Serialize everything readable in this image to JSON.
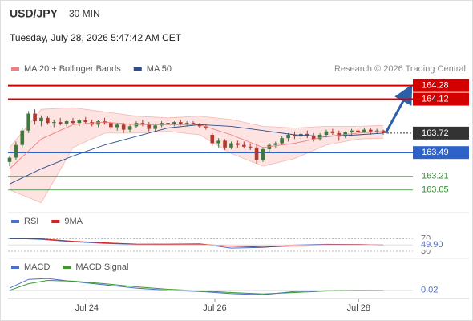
{
  "chart_data": [
    {
      "type": "candlestick",
      "title": "USD/JPY",
      "subtitle": "30 MIN",
      "date": "Tuesday, July 28, 2026 5:47:42 AM CET",
      "source": "Research © 2026 Trading Central",
      "up_color": "#3d7a3d",
      "down_color": "#b03a2e",
      "xlim": [
        -0.25,
        63.04
      ],
      "ylim": [
        162.83,
        164.39
      ],
      "xticks": [
        {
          "value": 12.2,
          "label": "Jul 24"
        },
        {
          "value": 32.4,
          "label": "Jul 26"
        },
        {
          "value": 55.1,
          "label": "Jul 28"
        }
      ],
      "x": [
        0,
        1,
        2,
        3,
        4,
        5,
        6,
        7,
        8,
        9,
        10,
        11,
        12,
        13,
        14,
        15,
        16,
        17,
        18,
        19,
        20,
        21,
        22,
        23,
        24,
        25,
        26,
        27,
        28,
        29,
        30,
        31,
        32,
        33,
        34,
        35,
        36,
        37,
        38,
        39,
        40,
        41,
        42,
        43,
        44,
        45,
        46,
        47,
        48,
        49,
        50,
        51,
        52,
        53,
        54,
        55,
        56,
        57,
        58,
        59
      ],
      "ohlc": [
        [
          163.38,
          163.45,
          163.33,
          163.43
        ],
        [
          163.43,
          163.62,
          163.4,
          163.58
        ],
        [
          163.58,
          163.78,
          163.55,
          163.75
        ],
        [
          163.75,
          163.98,
          163.72,
          163.95
        ],
        [
          163.95,
          164.0,
          163.82,
          163.86
        ],
        [
          163.86,
          163.93,
          163.8,
          163.9
        ],
        [
          163.9,
          163.92,
          163.82,
          163.84
        ],
        [
          163.84,
          163.88,
          163.79,
          163.85
        ],
        [
          163.85,
          163.9,
          163.81,
          163.83
        ],
        [
          163.83,
          163.87,
          163.8,
          163.86
        ],
        [
          163.86,
          163.9,
          163.82,
          163.84
        ],
        [
          163.84,
          163.89,
          163.8,
          163.87
        ],
        [
          163.87,
          163.91,
          163.83,
          163.85
        ],
        [
          163.85,
          163.88,
          163.8,
          163.82
        ],
        [
          163.82,
          163.87,
          163.79,
          163.86
        ],
        [
          163.86,
          163.9,
          163.82,
          163.84
        ],
        [
          163.84,
          163.86,
          163.76,
          163.79
        ],
        [
          163.79,
          163.84,
          163.75,
          163.82
        ],
        [
          163.82,
          163.84,
          163.72,
          163.76
        ],
        [
          163.76,
          163.82,
          163.73,
          163.8
        ],
        [
          163.8,
          163.86,
          163.78,
          163.84
        ],
        [
          163.84,
          163.88,
          163.8,
          163.82
        ],
        [
          163.82,
          163.85,
          163.74,
          163.77
        ],
        [
          163.77,
          163.83,
          163.74,
          163.81
        ],
        [
          163.81,
          163.86,
          163.79,
          163.84
        ],
        [
          163.84,
          163.87,
          163.8,
          163.83
        ],
        [
          163.83,
          163.86,
          163.8,
          163.85
        ],
        [
          163.85,
          163.88,
          163.81,
          163.83
        ],
        [
          163.83,
          163.86,
          163.8,
          163.84
        ],
        [
          163.84,
          163.86,
          163.81,
          163.82
        ],
        [
          163.82,
          163.84,
          163.78,
          163.8
        ],
        [
          163.8,
          163.82,
          163.76,
          163.78
        ],
        [
          163.7,
          163.72,
          163.57,
          163.6
        ],
        [
          163.6,
          163.66,
          163.55,
          163.63
        ],
        [
          163.63,
          163.65,
          163.52,
          163.55
        ],
        [
          163.55,
          163.62,
          163.53,
          163.6
        ],
        [
          163.6,
          163.63,
          163.55,
          163.58
        ],
        [
          163.58,
          163.62,
          163.54,
          163.56
        ],
        [
          163.56,
          163.6,
          163.52,
          163.55
        ],
        [
          163.55,
          163.58,
          163.36,
          163.4
        ],
        [
          163.4,
          163.55,
          163.38,
          163.53
        ],
        [
          163.53,
          163.6,
          163.5,
          163.58
        ],
        [
          163.58,
          163.62,
          163.55,
          163.6
        ],
        [
          163.6,
          163.68,
          163.58,
          163.66
        ],
        [
          163.66,
          163.72,
          163.62,
          163.7
        ],
        [
          163.7,
          163.74,
          163.65,
          163.68
        ],
        [
          163.68,
          163.73,
          163.64,
          163.71
        ],
        [
          163.71,
          163.75,
          163.66,
          163.69
        ],
        [
          163.69,
          163.72,
          163.62,
          163.65
        ],
        [
          163.65,
          163.72,
          163.63,
          163.7
        ],
        [
          163.7,
          163.76,
          163.67,
          163.74
        ],
        [
          163.74,
          163.77,
          163.7,
          163.72
        ],
        [
          163.72,
          163.75,
          163.63,
          163.68
        ],
        [
          163.68,
          163.74,
          163.66,
          163.73
        ],
        [
          163.73,
          163.77,
          163.7,
          163.75
        ],
        [
          163.75,
          163.78,
          163.71,
          163.73
        ],
        [
          163.73,
          163.78,
          163.72,
          163.76
        ],
        [
          163.76,
          163.78,
          163.7,
          163.74
        ],
        [
          163.74,
          163.77,
          163.71,
          163.75
        ],
        [
          163.75,
          163.76,
          163.7,
          163.72
        ]
      ],
      "series": [
        {
          "name": "MA 20 + Bollinger Bands",
          "color": "#f08080",
          "band_color": "#fde3e1",
          "x": [
            0,
            5,
            10,
            15,
            20,
            25,
            30,
            35,
            40,
            45,
            50,
            55,
            59
          ],
          "values": [
            163.3,
            163.65,
            163.82,
            163.85,
            163.82,
            163.82,
            163.82,
            163.7,
            163.55,
            163.6,
            163.68,
            163.72,
            163.74
          ],
          "upper": [
            163.55,
            164.0,
            164.02,
            163.97,
            163.92,
            163.9,
            163.92,
            163.88,
            163.8,
            163.78,
            163.8,
            163.8,
            163.81
          ],
          "lower": [
            163.05,
            162.9,
            163.55,
            163.72,
            163.72,
            163.74,
            163.7,
            163.48,
            163.33,
            163.42,
            163.58,
            163.65,
            163.66
          ]
        },
        {
          "name": "MA 50",
          "color": "#2b4f8c",
          "x": [
            0,
            5,
            10,
            15,
            20,
            25,
            30,
            35,
            40,
            45,
            50,
            55,
            59
          ],
          "values": [
            163.12,
            163.3,
            163.45,
            163.58,
            163.68,
            163.78,
            163.82,
            163.8,
            163.75,
            163.7,
            163.68,
            163.7,
            163.72
          ]
        }
      ],
      "levels": [
        {
          "value": 164.28,
          "color": "#d40000",
          "style": "box",
          "line": true
        },
        {
          "value": 164.12,
          "color": "#d40000",
          "style": "box",
          "line": true
        },
        {
          "value": 163.72,
          "color": "#333333",
          "style": "box",
          "line": false
        },
        {
          "value": 163.49,
          "color": "#2e62c9",
          "style": "box",
          "line": true
        },
        {
          "value": 163.21,
          "color": "#2e8b2e",
          "style": "text",
          "line": true
        },
        {
          "value": 163.05,
          "color": "#2e8b2e",
          "style": "text",
          "line": true
        }
      ]
    },
    {
      "type": "line",
      "xlim": [
        -0.25,
        63.04
      ],
      "ylim": [
        17,
        97
      ],
      "yticks": [
        70,
        30
      ],
      "current": {
        "value": 49.9,
        "label": "49.90"
      },
      "current_color": "#4a6fd1",
      "series": [
        {
          "name": "RSI",
          "color": "#4a6fd1",
          "x": [
            0,
            5,
            10,
            15,
            20,
            25,
            30,
            35,
            40,
            45,
            50,
            55,
            59
          ],
          "values": [
            72,
            68,
            60,
            55,
            52,
            53,
            54,
            40,
            42,
            50,
            52,
            51,
            49.9
          ]
        },
        {
          "name": "9MA",
          "color": "#d62020",
          "x": [
            0,
            5,
            10,
            15,
            20,
            25,
            30,
            35,
            40,
            45,
            50,
            55,
            59
          ],
          "values": [
            70,
            70,
            62,
            57,
            53,
            52,
            53,
            46,
            43,
            47,
            51,
            51,
            50
          ]
        }
      ]
    },
    {
      "type": "line",
      "xlim": [
        -0.25,
        63.04
      ],
      "ylim": [
        -0.01,
        0.1
      ],
      "current": 0.02,
      "current_color": "#4a6fd1",
      "series": [
        {
          "name": "MACD",
          "color": "#4a6fd1",
          "x": [
            0,
            3,
            6,
            10,
            15,
            20,
            25,
            30,
            35,
            40,
            45,
            50,
            55,
            59
          ],
          "values": [
            0.03,
            0.07,
            0.074,
            0.06,
            0.045,
            0.03,
            0.02,
            0.015,
            0.005,
            0.0,
            0.015,
            0.02,
            0.021,
            0.02
          ]
        },
        {
          "name": "MACD Signal",
          "color": "#3a9a2a",
          "x": [
            0,
            3,
            6,
            10,
            15,
            20,
            25,
            30,
            35,
            40,
            45,
            50,
            55,
            59
          ],
          "values": [
            0.02,
            0.05,
            0.065,
            0.062,
            0.05,
            0.036,
            0.025,
            0.018,
            0.01,
            0.004,
            0.01,
            0.017,
            0.02,
            0.02
          ]
        }
      ]
    }
  ]
}
